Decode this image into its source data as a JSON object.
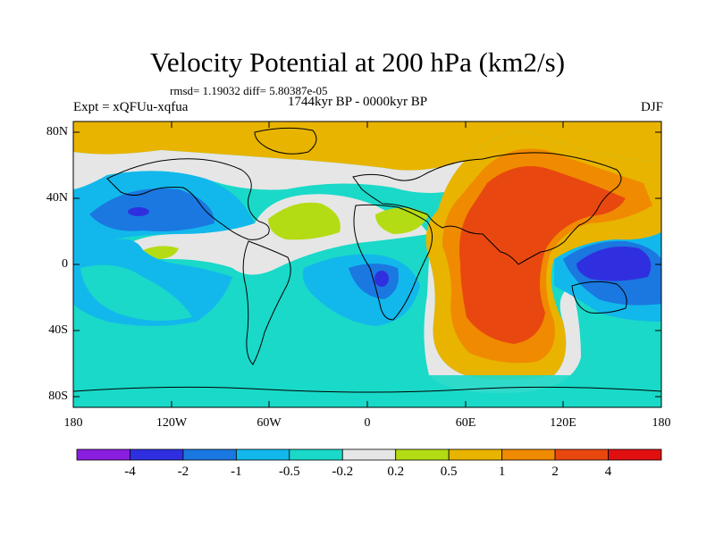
{
  "title": "Velocity Potential at 200 hPa (km2/s)",
  "stats": "rmsd= 1.19032 diff= 5.80387e-05",
  "period": "1744kyr BP - 0000kyr BP",
  "experiment": "Expt = xQFUu-xqfua",
  "season": "DJF",
  "lat_labels": [
    "80N",
    "40N",
    "0",
    "40S",
    "80S"
  ],
  "lon_labels": [
    "180",
    "120W",
    "60W",
    "0",
    "60E",
    "120E",
    "180"
  ],
  "colorbar": {
    "labels": [
      "-4",
      "-2",
      "-1",
      "-0.5",
      "-0.2",
      "0.2",
      "0.5",
      "1",
      "2",
      "4"
    ],
    "colors": [
      "#8a1ee0",
      "#2f2fe0",
      "#1a78e0",
      "#12b8ec",
      "#1ad9c8",
      "#e6e6e6",
      "#b4dc14",
      "#e8b400",
      "#f08a00",
      "#e84810",
      "#e01010"
    ]
  }
}
